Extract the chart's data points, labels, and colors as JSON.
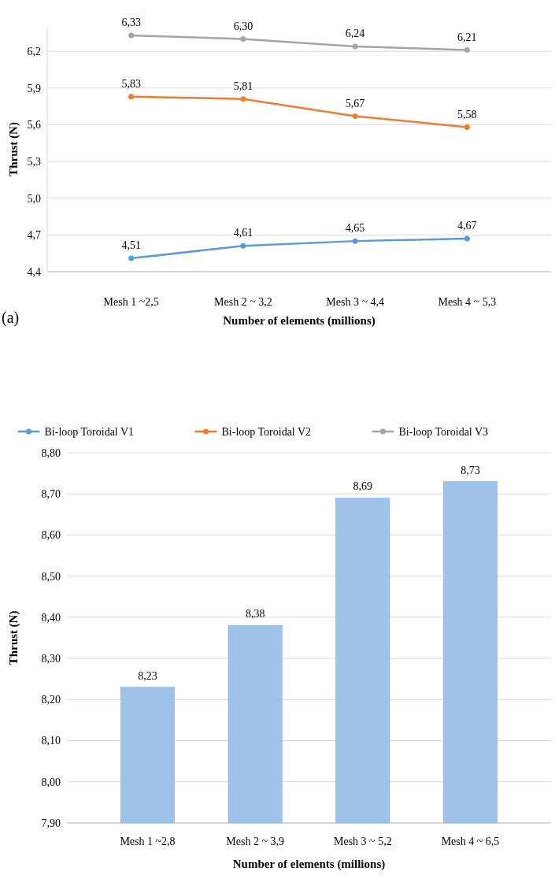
{
  "chart_data": [
    {
      "type": "line",
      "categories": [
        "Mesh 1 ~2,5",
        "Mesh 2 ~ 3,2",
        "Mesh 3 ~ 4,4",
        "Mesh 4 ~ 5,3"
      ],
      "xlabel": "Number of elements (millions)",
      "ylabel": "Thrust (N)",
      "ylim": [
        4.4,
        6.4
      ],
      "yticks": [
        {
          "value": 4.4,
          "label": "4,4"
        },
        {
          "value": 4.7,
          "label": "4,7"
        },
        {
          "value": 5.0,
          "label": "5,0"
        },
        {
          "value": 5.3,
          "label": "5,3"
        },
        {
          "value": 5.6,
          "label": "5,6"
        },
        {
          "value": 5.9,
          "label": "5,9"
        },
        {
          "value": 6.2,
          "label": "6,2"
        }
      ],
      "grid": "y",
      "legend": "bottom",
      "marker": "circle",
      "annotations": [
        "(a)"
      ],
      "series": [
        {
          "name": "Bi-loop Toroidal V1",
          "color": "#5b9bd5",
          "values": [
            4.51,
            4.61,
            4.65,
            4.67
          ],
          "value_labels": [
            "4,51",
            "4,61",
            "4,65",
            "4,67"
          ]
        },
        {
          "name": "Bi-loop Toroidal V2",
          "color": "#ed7d31",
          "values": [
            5.83,
            5.81,
            5.67,
            5.58
          ],
          "value_labels": [
            "5,83",
            "5,81",
            "5,67",
            "5,58"
          ]
        },
        {
          "name": "Bi-loop Toroidal V3",
          "color": "#a5a5a5",
          "values": [
            6.33,
            6.3,
            6.24,
            6.21
          ],
          "value_labels": [
            "6,33",
            "6,30",
            "6,24",
            "6,21"
          ]
        }
      ]
    },
    {
      "type": "bar",
      "categories": [
        "Mesh 1 ~2,8",
        "Mesh 2 ~ 3,9",
        "Mesh 3 ~ 5,2",
        "Mesh 4 ~ 6,5"
      ],
      "xlabel": "Number of elements (millions)",
      "ylabel": "Thrust (N)",
      "ylim": [
        7.9,
        8.8
      ],
      "yticks": [
        {
          "value": 7.9,
          "label": "7,90"
        },
        {
          "value": 8.0,
          "label": "8,00"
        },
        {
          "value": 8.1,
          "label": "8,10"
        },
        {
          "value": 8.2,
          "label": "8,20"
        },
        {
          "value": 8.3,
          "label": "8,30"
        },
        {
          "value": 8.4,
          "label": "8,40"
        },
        {
          "value": 8.5,
          "label": "8,50"
        },
        {
          "value": 8.6,
          "label": "8,60"
        },
        {
          "value": 8.7,
          "label": "8,70"
        },
        {
          "value": 8.8,
          "label": "8,80"
        }
      ],
      "grid": "y",
      "series": [
        {
          "color": "#9fc2e8",
          "values": [
            8.23,
            8.38,
            8.69,
            8.73
          ],
          "value_labels": [
            "8,23",
            "8,38",
            "8,69",
            "8,73"
          ]
        }
      ]
    }
  ]
}
